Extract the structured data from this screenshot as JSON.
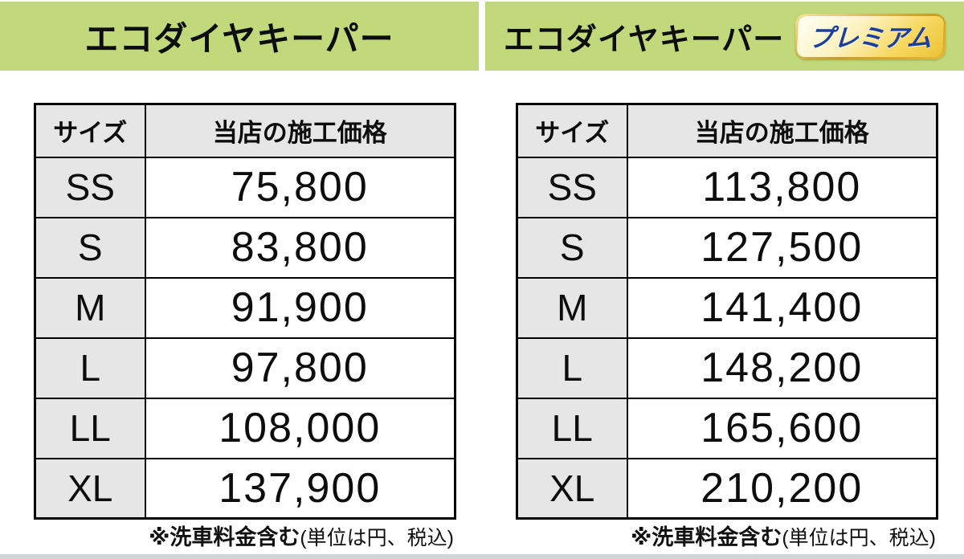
{
  "colors": {
    "header_band_green": "#c1d97b",
    "cell_gray": "#e6e6e6",
    "table_border": "#000000",
    "badge_gold": "#edc438",
    "badge_text_blue": "#1c3e9c",
    "bottom_strip_gray": "#d2d5d6"
  },
  "standard": {
    "title": "エコダイヤキーパー",
    "table": {
      "col_size": "サイズ",
      "col_price": "当店の施工価格",
      "rows": [
        {
          "size": "SS",
          "price": "75,800"
        },
        {
          "size": "S",
          "price": "83,800"
        },
        {
          "size": "M",
          "price": "91,900"
        },
        {
          "size": "L",
          "price": "97,800"
        },
        {
          "size": "LL",
          "price": "108,000"
        },
        {
          "size": "XL",
          "price": "137,900"
        }
      ]
    },
    "note_bold": "※洗車料金含む",
    "note_paren": "(単位は円、税込)"
  },
  "premium": {
    "title": "エコダイヤキーパー",
    "badge_label": "プレミアム",
    "table": {
      "col_size": "サイズ",
      "col_price": "当店の施工価格",
      "rows": [
        {
          "size": "SS",
          "price": "113,800"
        },
        {
          "size": "S",
          "price": "127,500"
        },
        {
          "size": "M",
          "price": "141,400"
        },
        {
          "size": "L",
          "price": "148,200"
        },
        {
          "size": "LL",
          "price": "165,600"
        },
        {
          "size": "XL",
          "price": "210,200"
        }
      ]
    },
    "note_bold": "※洗車料金含む",
    "note_paren": "(単位は円、税込)"
  }
}
